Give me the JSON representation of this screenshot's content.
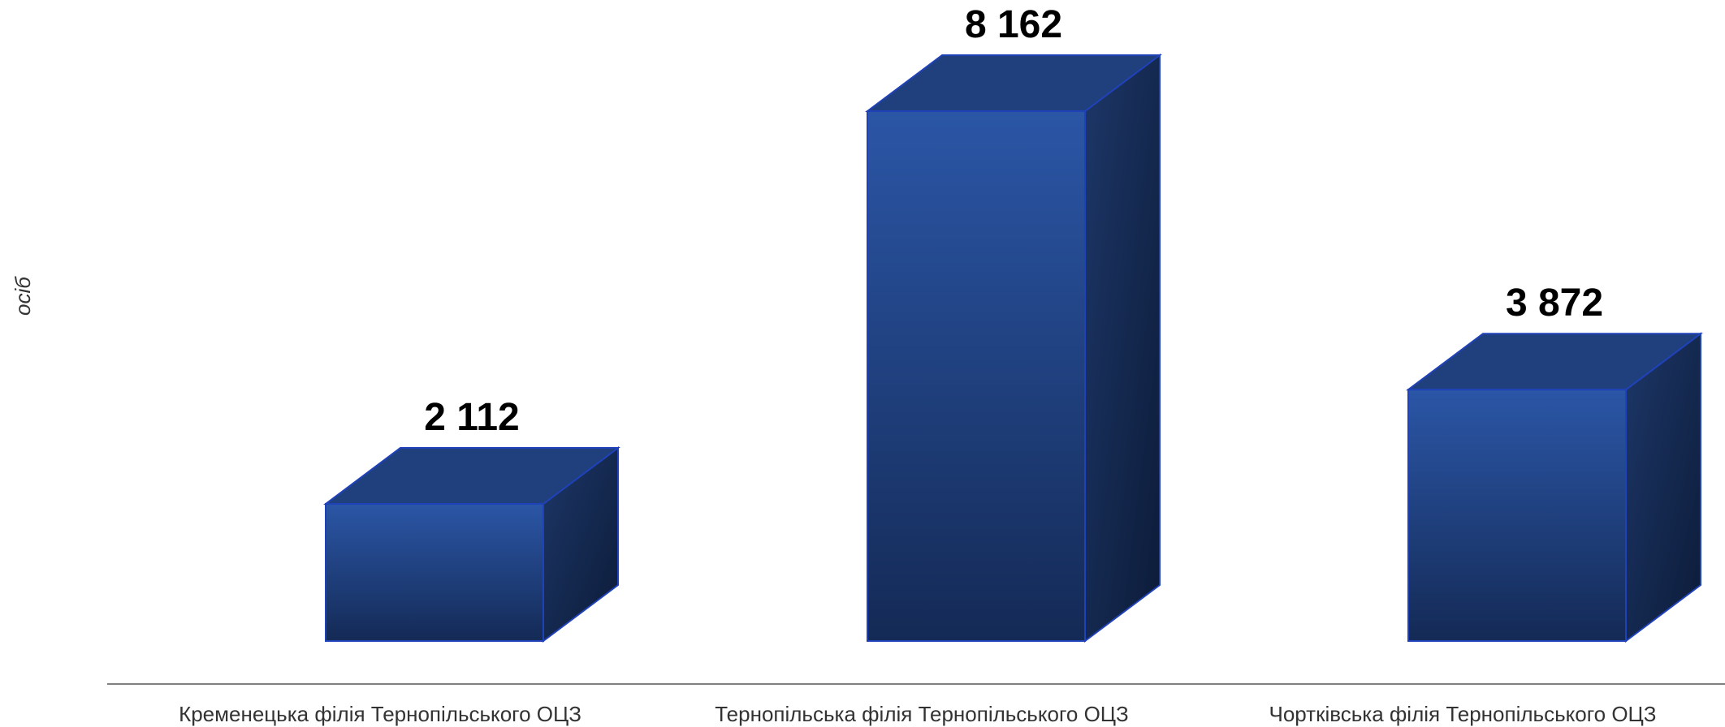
{
  "chart_data": {
    "type": "bar",
    "style": "3d-column",
    "categories": [
      "Кременецька філія Тернопільського ОЦЗ",
      "Тернопільська філія Тернопільського ОЦЗ",
      "Чортківська філія Тернопільського ОЦЗ"
    ],
    "values": [
      2112,
      8162,
      3872
    ],
    "value_labels": [
      "2 112",
      "8 162",
      "3 872"
    ],
    "ylabel": "осіб",
    "ylim": [
      0,
      8162
    ],
    "grid": false,
    "legend": "none",
    "colors": {
      "front_top": "#2b56a6",
      "front_bottom": "#142a56",
      "top_face": "#203f7d",
      "side_top": "#1d3768",
      "side_bottom": "#0c1b38",
      "edge": "#2042b8",
      "axis_line": "#808080"
    }
  }
}
